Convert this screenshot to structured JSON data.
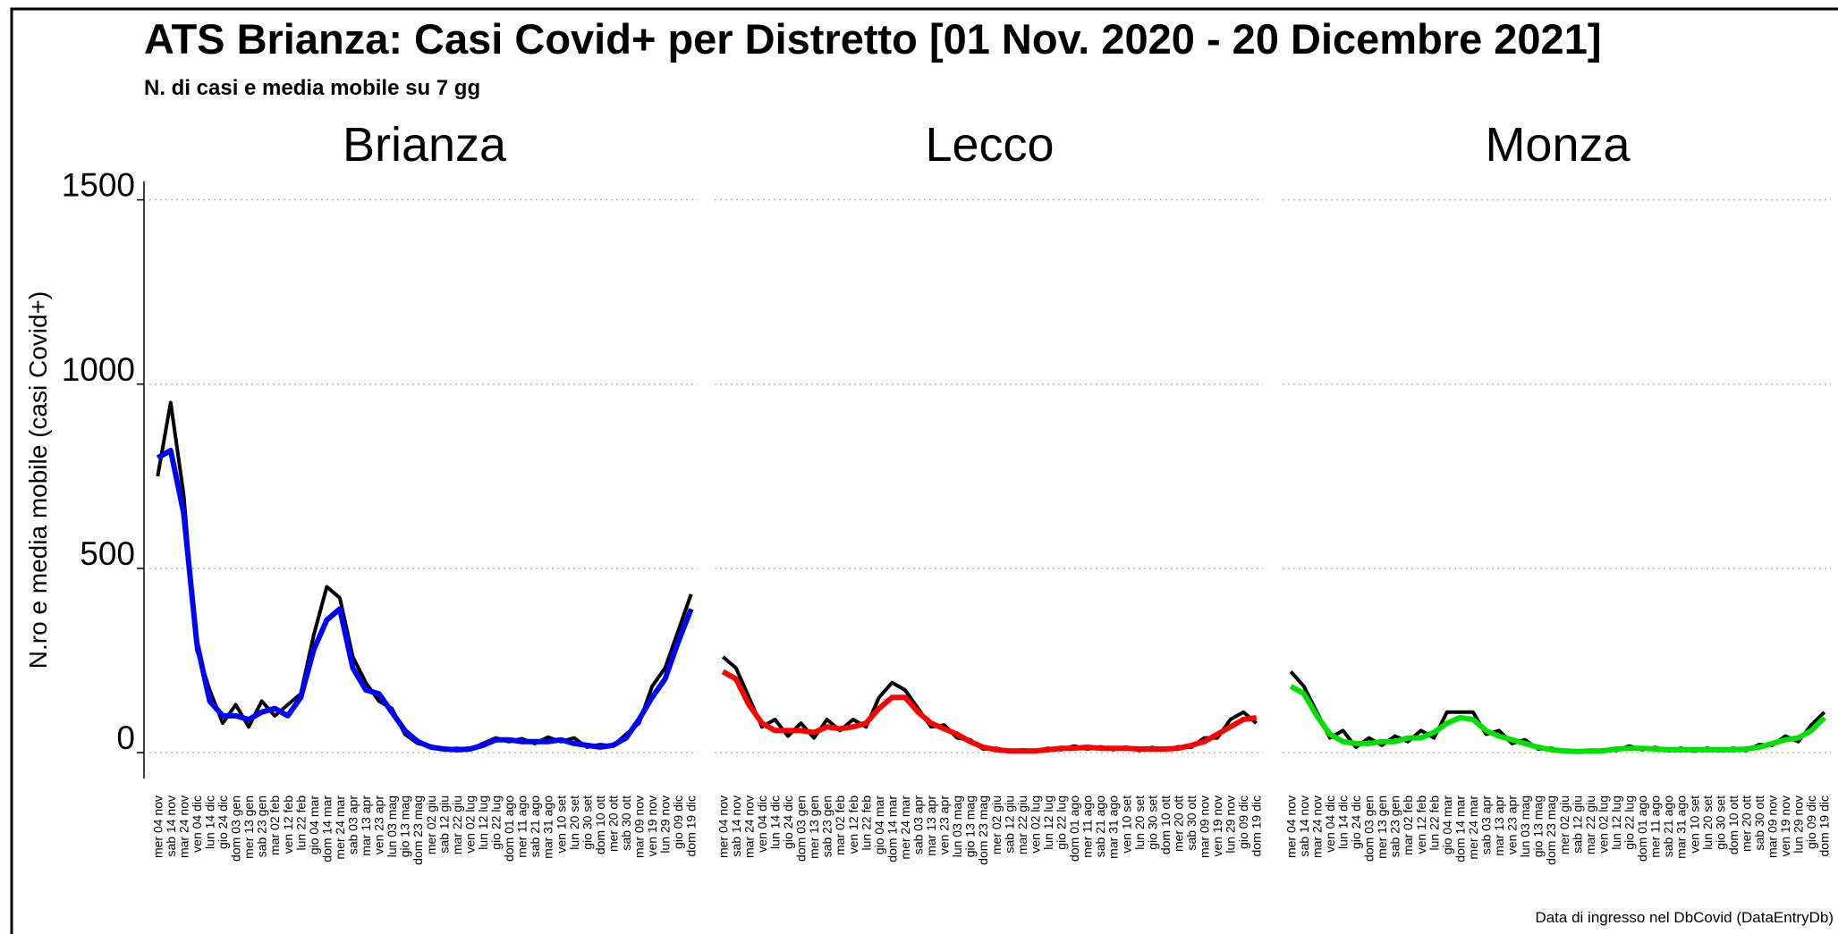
{
  "title": "ATS Brianza: Casi Covid+ per Distretto [01 Nov. 2020 - 20 Dicembre 2021]",
  "subtitle": "N. di casi e media mobile su 7 gg",
  "note": "Data di ingresso nel DbCovid (DataEntryDb)",
  "chart_data": [
    {
      "type": "line",
      "title": "Brianza",
      "ylabel": "N.ro e media mobile (casi Covid+)",
      "categories": [
        "mer 04 nov",
        "sab 14 nov",
        "mar 24 nov",
        "ven 04 dic",
        "lun 14 dic",
        "gio 24 dic",
        "dom 03 gen",
        "mer 13 gen",
        "sab 23 gen",
        "mar 02 feb",
        "ven 12 feb",
        "lun 22 feb",
        "gio 04 mar",
        "dom 14 mar",
        "mer 24 mar",
        "sab 03 apr",
        "mar 13 apr",
        "ven 23 apr",
        "lun 03 mag",
        "gio 13 mag",
        "dom 23 mag",
        "mer 02 giu",
        "sab 12 giu",
        "mar 22 giu",
        "ven 02 lug",
        "lun 12 lug",
        "gio 22 lug",
        "dom 01 ago",
        "mer 11 ago",
        "sab 21 ago",
        "mar 31 ago",
        "ven 10 set",
        "lun 20 set",
        "gio 30 set",
        "dom 10 ott",
        "mer 20 ott",
        "sab 30 ott",
        "mar 09 nov",
        "ven 19 nov",
        "lun 29 nov",
        "gio 09 dic",
        "dom 19 dic"
      ],
      "series": [
        {
          "color": "#000000",
          "values": [
            750,
            950,
            700,
            280,
            170,
            80,
            130,
            70,
            140,
            100,
            130,
            160,
            320,
            450,
            420,
            260,
            190,
            140,
            120,
            50,
            25,
            18,
            8,
            12,
            8,
            25,
            40,
            30,
            38,
            25,
            42,
            30,
            40,
            15,
            22,
            18,
            50,
            80,
            180,
            230,
            330,
            430
          ]
        },
        {
          "color": "#0000ff",
          "values": [
            800,
            820,
            650,
            300,
            140,
            100,
            100,
            90,
            110,
            120,
            100,
            150,
            280,
            360,
            390,
            230,
            170,
            160,
            110,
            60,
            30,
            15,
            10,
            8,
            10,
            20,
            35,
            35,
            30,
            30,
            30,
            35,
            25,
            20,
            15,
            20,
            40,
            90,
            150,
            200,
            300,
            390
          ]
        }
      ],
      "ylim": [
        -70,
        1550
      ],
      "yticks": [
        0,
        500,
        1000,
        1500
      ]
    },
    {
      "type": "line",
      "title": "Lecco",
      "categories": [
        "mer 04 nov",
        "sab 14 nov",
        "mar 24 nov",
        "ven 04 dic",
        "lun 14 dic",
        "gio 24 dic",
        "dom 03 gen",
        "mer 13 gen",
        "sab 23 gen",
        "mar 02 feb",
        "ven 12 feb",
        "lun 22 feb",
        "gio 04 mar",
        "dom 14 mar",
        "mer 24 mar",
        "sab 03 apr",
        "mar 13 apr",
        "ven 23 apr",
        "lun 03 mag",
        "gio 13 mag",
        "dom 23 mag",
        "mer 02 giu",
        "sab 12 giu",
        "mar 22 giu",
        "ven 02 lug",
        "lun 12 lug",
        "gio 22 lug",
        "dom 01 ago",
        "mer 11 ago",
        "sab 21 ago",
        "mar 31 ago",
        "ven 10 set",
        "lun 20 set",
        "gio 30 set",
        "dom 10 ott",
        "mer 20 ott",
        "sab 30 ott",
        "mar 09 nov",
        "ven 19 nov",
        "lun 29 nov",
        "gio 09 dic",
        "dom 19 dic"
      ],
      "series": [
        {
          "color": "#000000",
          "values": [
            260,
            230,
            150,
            70,
            90,
            45,
            80,
            40,
            90,
            60,
            90,
            70,
            150,
            190,
            170,
            120,
            70,
            75,
            40,
            35,
            10,
            12,
            3,
            8,
            4,
            12,
            8,
            18,
            10,
            16,
            8,
            15,
            6,
            14,
            8,
            16,
            15,
            40,
            40,
            90,
            110,
            80
          ]
        },
        {
          "color": "#ff0000",
          "values": [
            220,
            200,
            130,
            80,
            60,
            60,
            60,
            55,
            70,
            65,
            70,
            80,
            120,
            150,
            150,
            110,
            80,
            65,
            50,
            30,
            15,
            8,
            5,
            5,
            5,
            8,
            12,
            12,
            15,
            12,
            12,
            12,
            10,
            10,
            10,
            12,
            20,
            30,
            50,
            70,
            90,
            95
          ]
        }
      ],
      "ylim": [
        -70,
        1550
      ],
      "yticks": [
        0,
        500,
        1000,
        1500
      ]
    },
    {
      "type": "line",
      "title": "Monza",
      "categories": [
        "mer 04 nov",
        "sab 14 nov",
        "mar 24 nov",
        "ven 04 dic",
        "lun 14 dic",
        "gio 24 dic",
        "dom 03 gen",
        "mer 13 gen",
        "sab 23 gen",
        "mar 02 feb",
        "ven 12 feb",
        "lun 22 feb",
        "gio 04 mar",
        "dom 14 mar",
        "mer 24 mar",
        "sab 03 apr",
        "mar 13 apr",
        "ven 23 apr",
        "lun 03 mag",
        "gio 13 mag",
        "dom 23 mag",
        "mer 02 giu",
        "sab 12 giu",
        "mar 22 giu",
        "ven 02 lug",
        "lun 12 lug",
        "gio 22 lug",
        "dom 01 ago",
        "mer 11 ago",
        "sab 21 ago",
        "mar 31 ago",
        "ven 10 set",
        "lun 20 set",
        "gio 30 set",
        "dom 10 ott",
        "mer 20 ott",
        "sab 30 ott",
        "mar 09 nov",
        "ven 19 nov",
        "lun 29 nov",
        "gio 09 dic",
        "dom 19 dic"
      ],
      "series": [
        {
          "color": "#000000",
          "values": [
            220,
            180,
            110,
            40,
            60,
            15,
            40,
            20,
            45,
            30,
            60,
            40,
            110,
            110,
            110,
            50,
            60,
            25,
            35,
            10,
            12,
            3,
            5,
            2,
            8,
            6,
            18,
            8,
            14,
            5,
            12,
            4,
            12,
            5,
            12,
            6,
            22,
            20,
            45,
            30,
            75,
            110
          ]
        },
        {
          "color": "#00e000",
          "values": [
            180,
            160,
            100,
            50,
            30,
            25,
            25,
            30,
            30,
            40,
            40,
            55,
            80,
            95,
            90,
            60,
            45,
            35,
            25,
            15,
            8,
            5,
            3,
            5,
            5,
            10,
            12,
            12,
            10,
            8,
            8,
            8,
            8,
            8,
            8,
            10,
            15,
            25,
            35,
            40,
            60,
            95
          ]
        }
      ],
      "ylim": [
        -70,
        1550
      ],
      "yticks": [
        0,
        500,
        1000,
        1500
      ]
    }
  ]
}
